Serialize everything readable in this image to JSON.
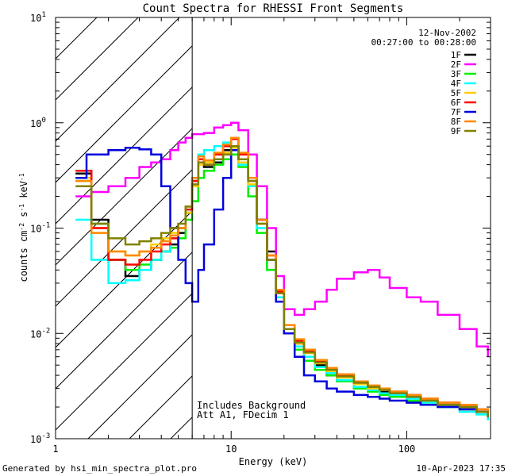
{
  "chart_data": {
    "type": "line",
    "title": "Count Spectra for RHESSI Front Segments",
    "xlabel": "Energy (keV)",
    "ylabel": "counts cm-2 s-1 keV-1",
    "xscale": "log",
    "yscale": "log",
    "xlim": [
      1,
      300
    ],
    "ylim": [
      0.001,
      10
    ],
    "x_ticks": [
      {
        "value": 1,
        "label": "1"
      },
      {
        "value": 10,
        "label": "10"
      },
      {
        "value": 100,
        "label": "100"
      }
    ],
    "y_ticks": [
      {
        "value": 0.001,
        "base": "10",
        "exp": "-3"
      },
      {
        "value": 0.01,
        "base": "10",
        "exp": "-2"
      },
      {
        "value": 0.1,
        "base": "10",
        "exp": "-1"
      },
      {
        "value": 1,
        "base": "10",
        "exp": "0"
      },
      {
        "value": 10,
        "base": "10",
        "exp": "1"
      }
    ],
    "attenuator_hatch_range_keV": [
      1,
      6
    ],
    "date": "12-Nov-2002",
    "time_range": "00:27:00 to 00:28:00",
    "annotation_lines": [
      "Includes Background",
      "Att A1, FDecim 1"
    ],
    "series": [
      {
        "name": "1F",
        "color": "#000000",
        "x": [
          1.3,
          1.6,
          2.0,
          2.5,
          3.0,
          3.5,
          4.0,
          4.5,
          5.0,
          5.5,
          6.0,
          6.5,
          7.0,
          8.0,
          9.0,
          10.0,
          11.0,
          12.5,
          14.0,
          16.0,
          18.0,
          20.0,
          23.0,
          26.0,
          30.0,
          35.0,
          40.0,
          50.0,
          60.0,
          70.0,
          80.0,
          100.0,
          120.0,
          150.0,
          200.0,
          250.0,
          290.0
        ],
        "y": [
          0.33,
          0.12,
          0.05,
          0.035,
          0.04,
          0.05,
          0.06,
          0.07,
          0.09,
          0.14,
          0.28,
          0.45,
          0.38,
          0.42,
          0.55,
          0.6,
          0.45,
          0.28,
          0.12,
          0.06,
          0.025,
          0.011,
          0.008,
          0.006,
          0.005,
          0.004,
          0.0035,
          0.003,
          0.003,
          0.0028,
          0.0025,
          0.0022,
          0.0021,
          0.002,
          0.0019,
          0.0018,
          0.0016
        ]
      },
      {
        "name": "2F",
        "color": "#ff00ff",
        "x": [
          1.3,
          1.6,
          2.0,
          2.5,
          3.0,
          3.5,
          4.0,
          4.5,
          5.0,
          5.5,
          6.0,
          7.0,
          8.0,
          9.0,
          10.0,
          11.0,
          12.5,
          14.0,
          16.0,
          18.0,
          20.0,
          23.0,
          26.0,
          30.0,
          35.0,
          40.0,
          50.0,
          60.0,
          70.0,
          80.0,
          100.0,
          120.0,
          150.0,
          200.0,
          250.0,
          290.0
        ],
        "y": [
          0.2,
          0.22,
          0.25,
          0.3,
          0.38,
          0.42,
          0.45,
          0.55,
          0.65,
          0.72,
          0.78,
          0.8,
          0.9,
          0.95,
          1.0,
          0.85,
          0.5,
          0.25,
          0.1,
          0.035,
          0.017,
          0.015,
          0.017,
          0.02,
          0.026,
          0.033,
          0.038,
          0.04,
          0.034,
          0.027,
          0.022,
          0.02,
          0.015,
          0.011,
          0.0075,
          0.006
        ]
      },
      {
        "name": "3F",
        "color": "#00ee00",
        "x": [
          1.3,
          1.6,
          2.0,
          2.5,
          3.0,
          3.5,
          4.0,
          4.5,
          5.0,
          5.5,
          6.0,
          6.5,
          7.0,
          8.0,
          9.0,
          10.0,
          11.0,
          12.5,
          14.0,
          16.0,
          18.0,
          20.0,
          23.0,
          26.0,
          30.0,
          35.0,
          40.0,
          50.0,
          60.0,
          70.0,
          80.0,
          100.0,
          120.0,
          150.0,
          200.0,
          250.0,
          290.0
        ],
        "y": [
          0.28,
          0.11,
          0.05,
          0.04,
          0.045,
          0.05,
          0.06,
          0.065,
          0.08,
          0.12,
          0.18,
          0.3,
          0.35,
          0.4,
          0.45,
          0.5,
          0.38,
          0.2,
          0.09,
          0.04,
          0.02,
          0.01,
          0.007,
          0.0055,
          0.0045,
          0.004,
          0.0035,
          0.003,
          0.0028,
          0.0026,
          0.0025,
          0.0023,
          0.0022,
          0.002,
          0.0019,
          0.0017,
          0.0015
        ]
      },
      {
        "name": "4F",
        "color": "#00ffff",
        "x": [
          1.3,
          1.6,
          2.0,
          2.5,
          3.0,
          3.5,
          4.0,
          4.5,
          5.0,
          5.5,
          6.0,
          6.5,
          7.0,
          8.0,
          9.0,
          10.0,
          11.0,
          12.5,
          14.0,
          16.0,
          18.0,
          20.0,
          23.0,
          26.0,
          30.0,
          35.0,
          40.0,
          50.0,
          60.0,
          70.0,
          80.0,
          100.0,
          120.0,
          150.0,
          200.0,
          250.0,
          290.0
        ],
        "y": [
          0.12,
          0.05,
          0.03,
          0.032,
          0.04,
          0.05,
          0.06,
          0.08,
          0.1,
          0.15,
          0.3,
          0.5,
          0.55,
          0.6,
          0.65,
          0.55,
          0.4,
          0.25,
          0.1,
          0.05,
          0.022,
          0.01,
          0.0075,
          0.006,
          0.0048,
          0.0042,
          0.0036,
          0.0031,
          0.0029,
          0.0027,
          0.0026,
          0.0024,
          0.0022,
          0.002,
          0.0018,
          0.0017,
          0.0015
        ]
      },
      {
        "name": "5F",
        "color": "#ffcc00",
        "x": [
          1.3,
          1.6,
          2.0,
          2.5,
          3.0,
          3.5,
          4.0,
          4.5,
          5.0,
          5.5,
          6.0,
          6.5,
          7.0,
          8.0,
          9.0,
          10.0,
          11.0,
          12.5,
          14.0,
          16.0,
          18.0,
          20.0,
          23.0,
          26.0,
          30.0,
          35.0,
          40.0,
          50.0,
          60.0,
          70.0,
          80.0,
          100.0,
          120.0,
          150.0,
          200.0,
          250.0,
          290.0
        ],
        "y": [
          0.3,
          0.1,
          0.06,
          0.055,
          0.06,
          0.07,
          0.08,
          0.09,
          0.1,
          0.14,
          0.25,
          0.4,
          0.42,
          0.45,
          0.52,
          0.58,
          0.42,
          0.26,
          0.11,
          0.05,
          0.024,
          0.011,
          0.008,
          0.0065,
          0.0052,
          0.0044,
          0.0038,
          0.0033,
          0.003,
          0.0029,
          0.0027,
          0.0025,
          0.0023,
          0.0021,
          0.002,
          0.0018,
          0.0016
        ]
      },
      {
        "name": "6F",
        "color": "#ff0000",
        "x": [
          1.3,
          1.6,
          2.0,
          2.5,
          3.0,
          3.5,
          4.0,
          4.5,
          5.0,
          5.5,
          6.0,
          6.5,
          7.0,
          8.0,
          9.0,
          10.0,
          11.0,
          12.5,
          14.0,
          16.0,
          18.0,
          20.0,
          23.0,
          26.0,
          30.0,
          35.0,
          40.0,
          50.0,
          60.0,
          70.0,
          80.0,
          100.0,
          120.0,
          150.0,
          200.0,
          250.0,
          290.0
        ],
        "y": [
          0.35,
          0.1,
          0.05,
          0.045,
          0.05,
          0.06,
          0.07,
          0.08,
          0.1,
          0.15,
          0.28,
          0.45,
          0.4,
          0.5,
          0.6,
          0.7,
          0.5,
          0.3,
          0.12,
          0.055,
          0.025,
          0.012,
          0.0085,
          0.0068,
          0.0055,
          0.0046,
          0.004,
          0.0034,
          0.0031,
          0.003,
          0.0028,
          0.0026,
          0.0024,
          0.0022,
          0.002,
          0.0019,
          0.0017
        ]
      },
      {
        "name": "7F",
        "color": "#0000dd",
        "x": [
          1.3,
          1.5,
          2.0,
          2.5,
          3.0,
          3.5,
          4.0,
          4.5,
          5.0,
          5.5,
          6.0,
          6.5,
          7.0,
          8.0,
          9.0,
          10.0,
          11.0,
          12.5,
          14.0,
          16.0,
          18.0,
          20.0,
          23.0,
          26.0,
          30.0,
          35.0,
          40.0,
          50.0,
          60.0,
          70.0,
          80.0,
          100.0,
          120.0,
          150.0,
          200.0,
          250.0,
          290.0
        ],
        "y": [
          0.3,
          0.5,
          0.55,
          0.58,
          0.56,
          0.5,
          0.25,
          0.1,
          0.05,
          0.03,
          0.02,
          0.04,
          0.07,
          0.15,
          0.3,
          0.55,
          0.45,
          0.3,
          0.12,
          0.05,
          0.02,
          0.01,
          0.006,
          0.004,
          0.0035,
          0.003,
          0.0028,
          0.0026,
          0.0025,
          0.0024,
          0.0023,
          0.0022,
          0.0021,
          0.002,
          0.0019,
          0.0018,
          0.0016
        ]
      },
      {
        "name": "8F",
        "color": "#ff8800",
        "x": [
          1.3,
          1.6,
          2.0,
          2.5,
          3.0,
          3.5,
          4.0,
          4.5,
          5.0,
          5.5,
          6.0,
          6.5,
          7.0,
          8.0,
          9.0,
          10.0,
          11.0,
          12.5,
          14.0,
          16.0,
          18.0,
          20.0,
          23.0,
          26.0,
          30.0,
          35.0,
          40.0,
          50.0,
          60.0,
          70.0,
          80.0,
          100.0,
          120.0,
          150.0,
          200.0,
          250.0,
          290.0
        ],
        "y": [
          0.28,
          0.09,
          0.06,
          0.055,
          0.06,
          0.065,
          0.075,
          0.085,
          0.1,
          0.16,
          0.3,
          0.48,
          0.44,
          0.52,
          0.62,
          0.72,
          0.52,
          0.3,
          0.12,
          0.055,
          0.026,
          0.012,
          0.0088,
          0.007,
          0.0056,
          0.0047,
          0.0041,
          0.0035,
          0.0032,
          0.003,
          0.0028,
          0.0026,
          0.0024,
          0.0022,
          0.0021,
          0.0019,
          0.0017
        ]
      },
      {
        "name": "9F",
        "color": "#808000",
        "x": [
          1.3,
          1.6,
          2.0,
          2.5,
          3.0,
          3.5,
          4.0,
          4.5,
          5.0,
          5.5,
          6.0,
          6.5,
          7.0,
          8.0,
          9.0,
          10.0,
          11.0,
          12.5,
          14.0,
          16.0,
          18.0,
          20.0,
          23.0,
          26.0,
          30.0,
          35.0,
          40.0,
          50.0,
          60.0,
          70.0,
          80.0,
          100.0,
          120.0,
          150.0,
          200.0,
          250.0,
          290.0
        ],
        "y": [
          0.25,
          0.11,
          0.08,
          0.07,
          0.075,
          0.08,
          0.09,
          0.1,
          0.11,
          0.16,
          0.26,
          0.42,
          0.4,
          0.45,
          0.5,
          0.6,
          0.45,
          0.28,
          0.11,
          0.05,
          0.024,
          0.011,
          0.0082,
          0.0066,
          0.0053,
          0.0045,
          0.0039,
          0.0034,
          0.0031,
          0.0029,
          0.0027,
          0.0025,
          0.0023,
          0.0021,
          0.002,
          0.0018,
          0.0016
        ]
      }
    ]
  },
  "footer": {
    "generated_by": "Generated by hsi_min_spectra_plot.pro",
    "date": "10-Apr-2023 17:35"
  }
}
